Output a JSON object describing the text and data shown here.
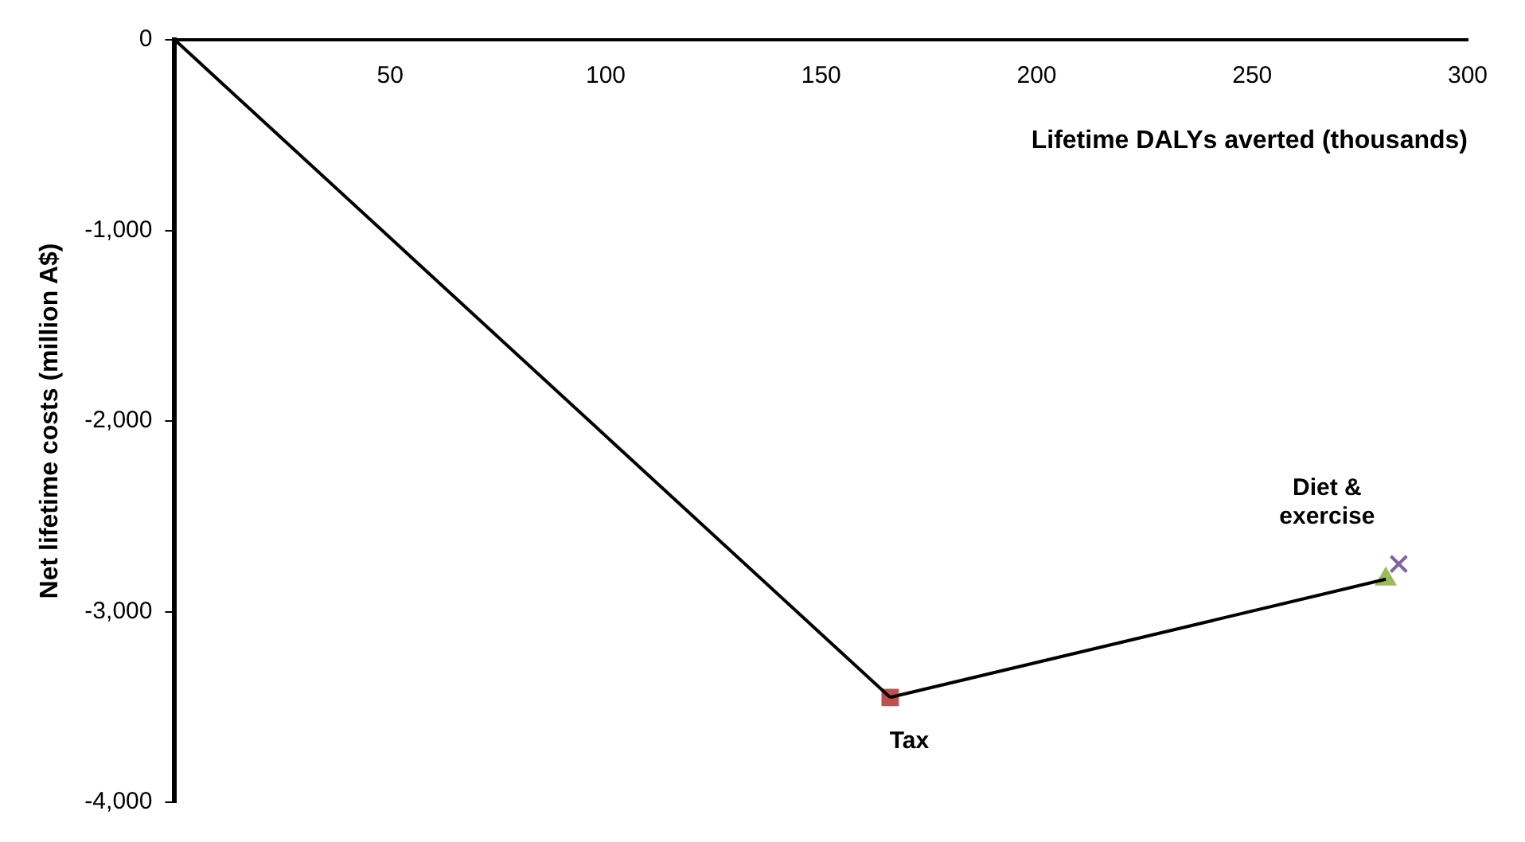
{
  "chart_data": {
    "type": "scatter",
    "xlabel": "Lifetime DALYs averted (thousands)",
    "ylabel": "Net lifetime costs (million A$)",
    "xlim": [
      0,
      300
    ],
    "xticks": [
      50,
      100,
      150,
      200,
      250,
      300
    ],
    "ylim": [
      -4000,
      0
    ],
    "yticks": [
      {
        "value": -4000,
        "label": "-4,000"
      },
      {
        "value": -3000,
        "label": "-3,000"
      },
      {
        "value": -2000,
        "label": "-2,000"
      },
      {
        "value": -1000,
        "label": "-1,000"
      },
      0
    ],
    "grid": false,
    "series": [
      {
        "type": "line",
        "color": "#000000",
        "x": [
          0,
          166
        ],
        "values": [
          0,
          -3450
        ],
        "marker": "none"
      },
      {
        "type": "line",
        "color": "#000000",
        "x": [
          166,
          281
        ],
        "values": [
          -3450,
          -2830
        ],
        "marker": "none"
      },
      {
        "type": "scatter",
        "name": "Tax",
        "color": "#c0504d",
        "x": [
          166
        ],
        "values": [
          -3450
        ],
        "marker": "square"
      },
      {
        "type": "scatter",
        "color": "#9bbb59",
        "x": [
          281
        ],
        "values": [
          -2830
        ],
        "marker": "triangle"
      },
      {
        "type": "scatter",
        "name": "Diet & exercise",
        "color": "#8064a2",
        "x": [
          284
        ],
        "values": [
          -2750
        ],
        "marker": "cross"
      }
    ]
  }
}
